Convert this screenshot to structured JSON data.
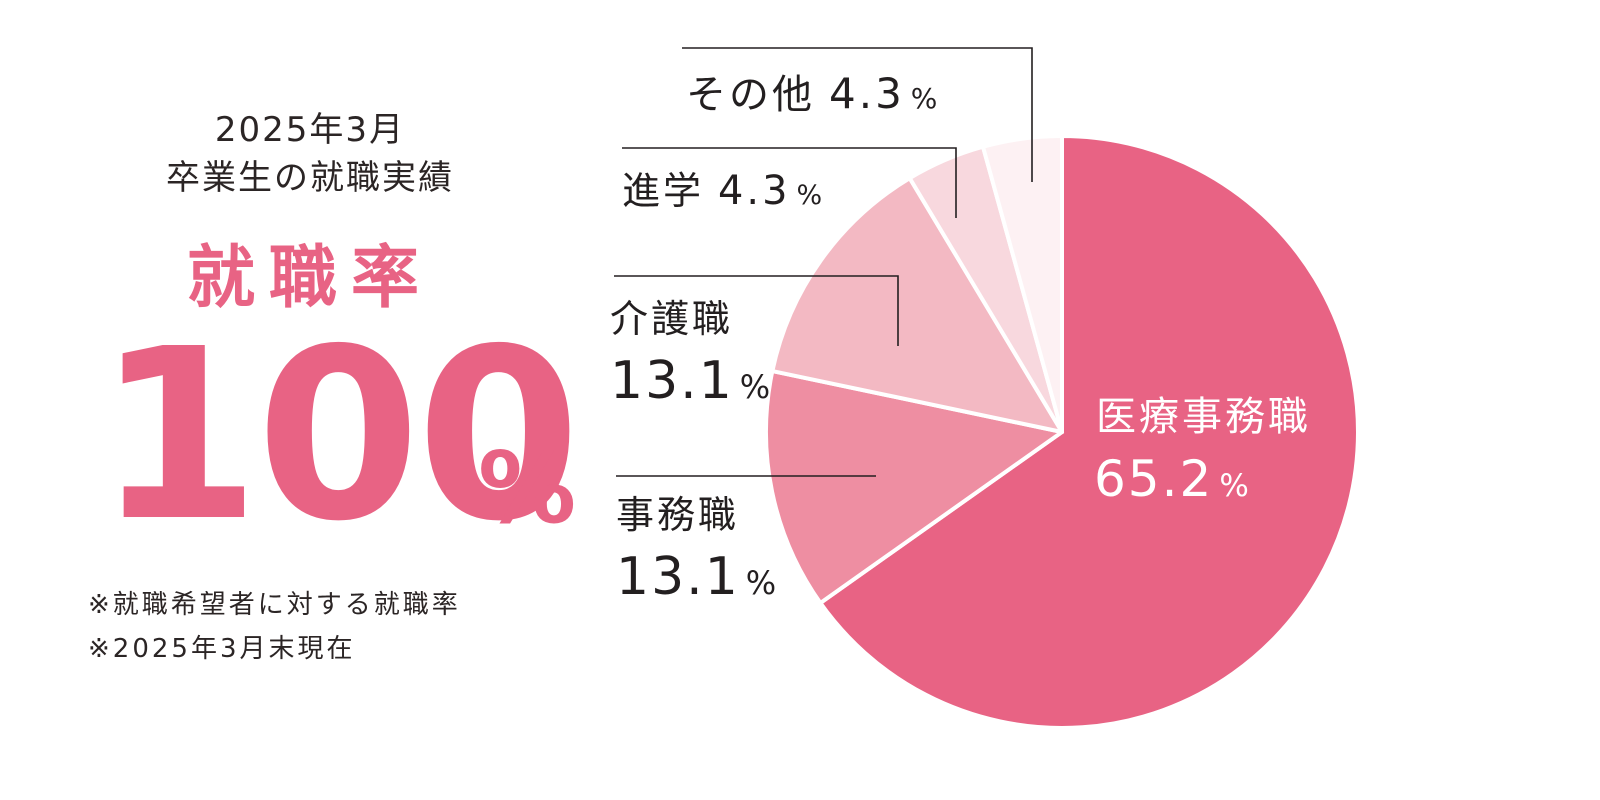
{
  "header": {
    "year_line1": "2025年3月",
    "year_line2": "卒業生の就職実績"
  },
  "rate": {
    "title": "就職率",
    "value": "100",
    "unit": "%"
  },
  "notes": [
    "※就職希望者に対する就職率",
    "※2025年3月末現在"
  ],
  "colors": {
    "accent": "#e86384",
    "text": "#231f20"
  },
  "chart_data": {
    "type": "pie",
    "slices": [
      {
        "label": "医療事務職",
        "value": 65.2,
        "value_text": "65.2",
        "unit": "%",
        "color": "#e86384"
      },
      {
        "label": "事務職",
        "value": 13.1,
        "value_text": "13.1",
        "unit": "%",
        "color": "#ee8ea2"
      },
      {
        "label": "介護職",
        "value": 13.1,
        "value_text": "13.1",
        "unit": "%",
        "color": "#f3b9c3"
      },
      {
        "label": "進学",
        "value": 4.3,
        "value_text": "4.3",
        "unit": "%",
        "color": "#f8d8de"
      },
      {
        "label": "その他",
        "value": 4.3,
        "value_text": "4.3",
        "unit": "%",
        "color": "#fdf1f3"
      }
    ],
    "start_angle_deg": 0,
    "direction": "clockwise"
  }
}
